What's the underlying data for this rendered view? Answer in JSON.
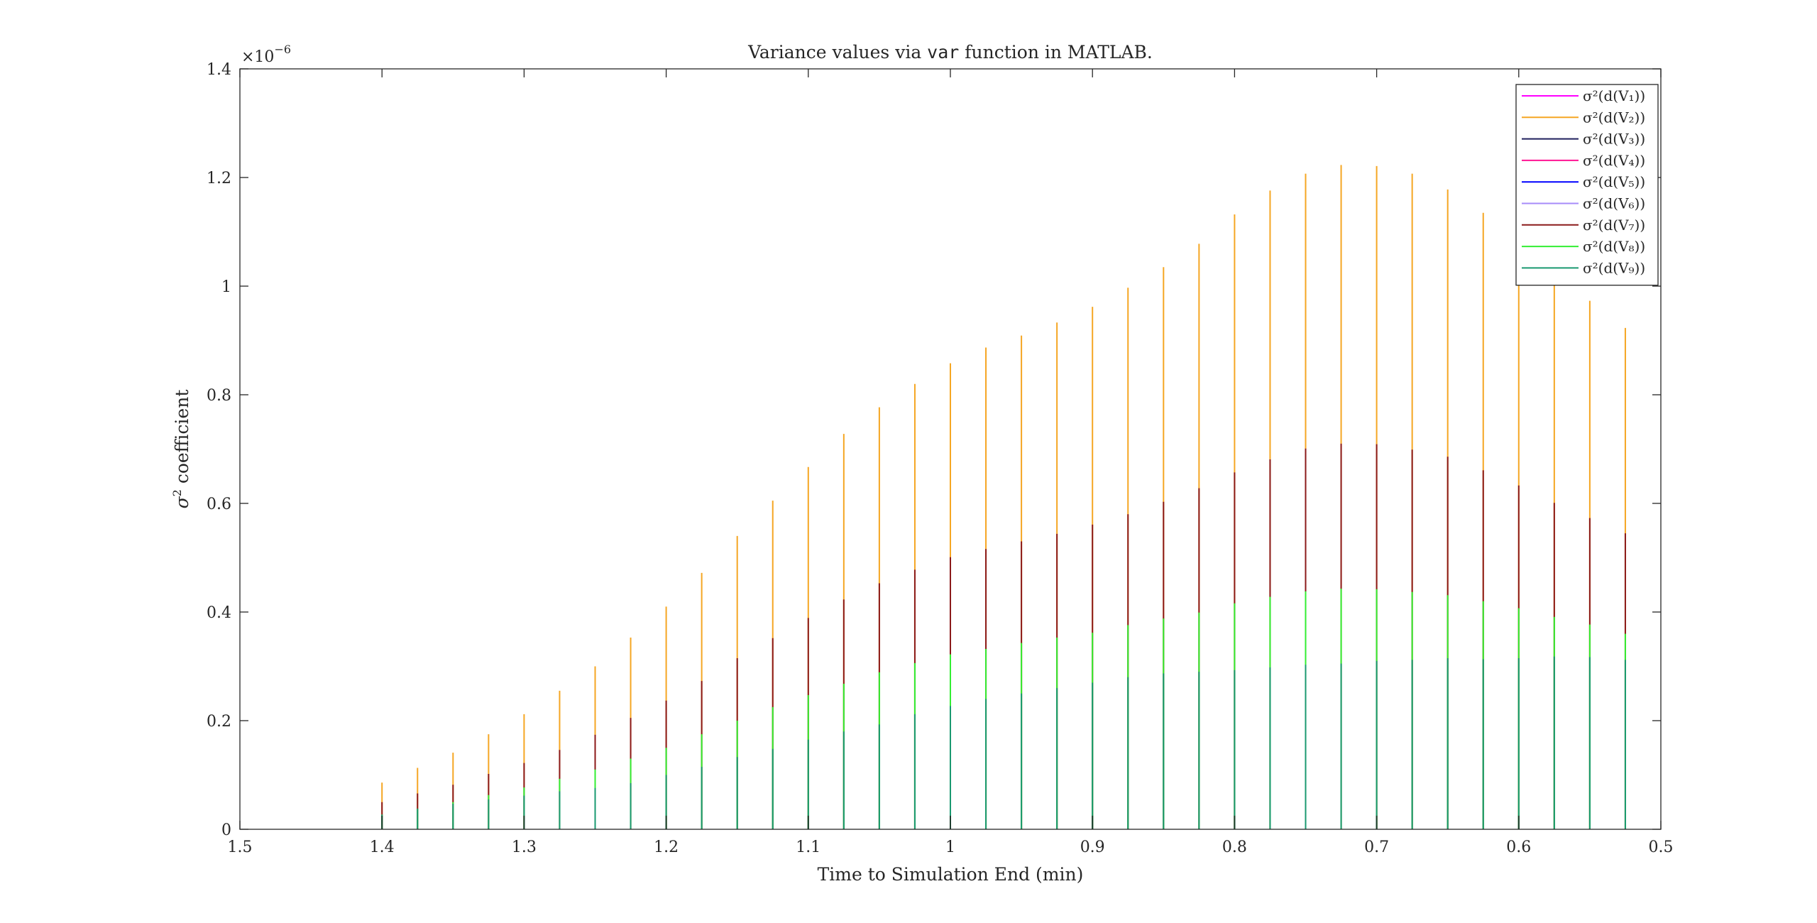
{
  "chart_data": {
    "type": "bar",
    "title": {
      "prefix": "Variance values via ",
      "code": "var",
      "suffix": " function in MATLAB."
    },
    "xlabel": "Time to Simulation End (min)",
    "ylabel": "coefficient",
    "y_exponent_label": "×10",
    "y_exponent_power": "−6",
    "y_multiplier": 1e-06,
    "xlim": [
      1.5,
      0.5
    ],
    "x_reversed": true,
    "ylim": [
      0,
      1.4
    ],
    "x_ticks": [
      1.5,
      1.4,
      1.3,
      1.2,
      1.1,
      1,
      0.9,
      0.8,
      0.7,
      0.6,
      0.5
    ],
    "x_tick_labels": [
      "1.5",
      "1.4",
      "1.3",
      "1.2",
      "1.1",
      "1",
      "0.9",
      "0.8",
      "0.7",
      "0.6",
      "0.5"
    ],
    "y_ticks": [
      0,
      0.2,
      0.4,
      0.6,
      0.8,
      1.0,
      1.2,
      1.4
    ],
    "y_tick_labels": [
      "0",
      "0.2",
      "0.4",
      "0.6",
      "0.8",
      "1",
      "1.2",
      "1.4"
    ],
    "grid": false,
    "legend_position": "top-right",
    "x": [
      1.4,
      1.375,
      1.35,
      1.325,
      1.3,
      1.275,
      1.25,
      1.225,
      1.2,
      1.175,
      1.15,
      1.125,
      1.1,
      1.075,
      1.05,
      1.025,
      1.0,
      0.975,
      0.95,
      0.925,
      0.9,
      0.875,
      0.85,
      0.825,
      0.8,
      0.775,
      0.75,
      0.725,
      0.7,
      0.675,
      0.65,
      0.625,
      0.6,
      0.575,
      0.55,
      0.525
    ],
    "series": [
      {
        "name": "σ²(d(V₁))",
        "color": "#ff00ff",
        "values": [
          0,
          0,
          0,
          0,
          0,
          0,
          0,
          0,
          0,
          0,
          0,
          0,
          0,
          0,
          0,
          0,
          0,
          0,
          0,
          0,
          0,
          0,
          0,
          0,
          0,
          0,
          0,
          0,
          0,
          0,
          0,
          0,
          0,
          0,
          0,
          0
        ]
      },
      {
        "name": "σ²(d(V₂))",
        "color": "#f5a623",
        "values": [
          0.086,
          0.113,
          0.141,
          0.175,
          0.212,
          0.255,
          0.3,
          0.353,
          0.41,
          0.472,
          0.54,
          0.605,
          0.667,
          0.728,
          0.777,
          0.82,
          0.858,
          0.887,
          0.909,
          0.933,
          0.962,
          0.997,
          1.035,
          1.078,
          1.132,
          1.176,
          1.207,
          1.223,
          1.221,
          1.207,
          1.178,
          1.135,
          1.077,
          1.025,
          0.973,
          0.923
        ]
      },
      {
        "name": "σ²(d(V₃))",
        "color": "#1f1f5c",
        "values": [
          0,
          0,
          0,
          0,
          0,
          0,
          0,
          0,
          0,
          0,
          0,
          0,
          0,
          0,
          0,
          0,
          0,
          0,
          0,
          0,
          0,
          0,
          0,
          0,
          0,
          0,
          0,
          0,
          0,
          0,
          0,
          0,
          0,
          0,
          0,
          0
        ]
      },
      {
        "name": "σ²(d(V₄))",
        "color": "#ff1493",
        "values": [
          0,
          0,
          0,
          0,
          0,
          0,
          0,
          0,
          0,
          0,
          0,
          0,
          0,
          0,
          0,
          0,
          0,
          0,
          0,
          0,
          0,
          0,
          0,
          0,
          0,
          0,
          0,
          0,
          0,
          0,
          0,
          0,
          0,
          0,
          0,
          0
        ]
      },
      {
        "name": "σ²(d(V₅))",
        "color": "#0000ff",
        "values": [
          0,
          0,
          0,
          0,
          0,
          0,
          0,
          0,
          0,
          0,
          0,
          0,
          0,
          0,
          0,
          0,
          0,
          0,
          0,
          0,
          0,
          0,
          0,
          0,
          0,
          0,
          0,
          0,
          0,
          0,
          0,
          0,
          0,
          0,
          0,
          0
        ]
      },
      {
        "name": "σ²(d(V₆))",
        "color": "#a78bfa",
        "values": [
          0,
          0,
          0,
          0,
          0,
          0,
          0,
          0,
          0,
          0,
          0,
          0,
          0,
          0,
          0,
          0,
          0,
          0,
          0,
          0,
          0,
          0,
          0,
          0,
          0,
          0,
          0,
          0,
          0,
          0,
          0,
          0,
          0,
          0,
          0,
          0
        ]
      },
      {
        "name": "σ²(d(V₇))",
        "color": "#8b1a1a",
        "values": [
          0.05,
          0.066,
          0.082,
          0.102,
          0.122,
          0.146,
          0.174,
          0.205,
          0.237,
          0.273,
          0.315,
          0.352,
          0.389,
          0.423,
          0.453,
          0.478,
          0.501,
          0.516,
          0.53,
          0.544,
          0.561,
          0.58,
          0.603,
          0.628,
          0.657,
          0.681,
          0.701,
          0.71,
          0.709,
          0.699,
          0.686,
          0.661,
          0.633,
          0.601,
          0.573,
          0.545
        ]
      },
      {
        "name": "σ²(d(V₈))",
        "color": "#33ee33",
        "values": [
          0.027,
          0.038,
          0.05,
          0.063,
          0.077,
          0.093,
          0.11,
          0.13,
          0.15,
          0.175,
          0.2,
          0.225,
          0.247,
          0.268,
          0.289,
          0.306,
          0.322,
          0.332,
          0.343,
          0.353,
          0.362,
          0.376,
          0.388,
          0.399,
          0.416,
          0.428,
          0.438,
          0.443,
          0.442,
          0.437,
          0.431,
          0.42,
          0.407,
          0.391,
          0.377,
          0.36
        ]
      },
      {
        "name": "σ²(d(V₉))",
        "color": "#1a9970",
        "values": [
          0.027,
          0.038,
          0.047,
          0.055,
          0.062,
          0.07,
          0.076,
          0.085,
          0.1,
          0.115,
          0.133,
          0.148,
          0.165,
          0.18,
          0.193,
          0.212,
          0.227,
          0.24,
          0.25,
          0.26,
          0.27,
          0.28,
          0.287,
          0.29,
          0.293,
          0.298,
          0.303,
          0.305,
          0.31,
          0.312,
          0.315,
          0.313,
          0.315,
          0.318,
          0.317,
          0.312
        ]
      }
    ]
  }
}
